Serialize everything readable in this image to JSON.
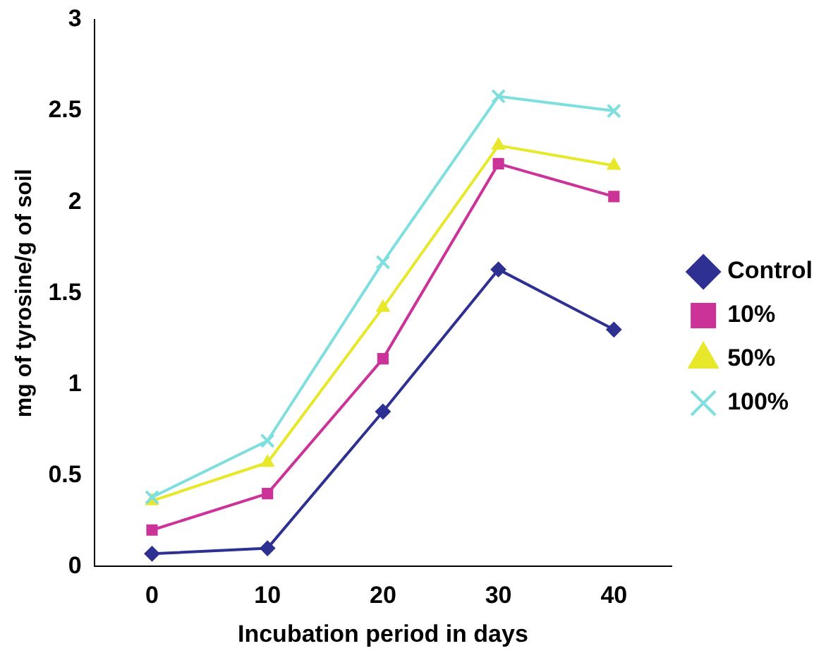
{
  "chart_data": {
    "type": "line",
    "xlabel": "Incubation period in days",
    "ylabel": "mg of tyrosine/g of soil",
    "categories": [
      "0",
      "10",
      "20",
      "30",
      "40"
    ],
    "ylim": [
      0,
      3
    ],
    "yticks": [
      0,
      0.5,
      1,
      1.5,
      2,
      2.5,
      3
    ],
    "grid": false,
    "legend": "right",
    "line_style": "solid",
    "series": [
      {
        "name": "Control",
        "color": "#2e3192",
        "marker": "diamond",
        "values": [
          0.07,
          0.1,
          0.85,
          1.63,
          1.3
        ]
      },
      {
        "name": "10%",
        "color": "#cc3399",
        "marker": "square",
        "values": [
          0.2,
          0.4,
          1.14,
          2.21,
          2.03
        ]
      },
      {
        "name": "50%",
        "color": "#e8e82a",
        "marker": "triangle",
        "values": [
          0.36,
          0.57,
          1.42,
          2.31,
          2.2
        ]
      },
      {
        "name": "100%",
        "color": "#7fdfdf",
        "marker": "cross",
        "values": [
          0.38,
          0.69,
          1.67,
          2.58,
          2.5
        ]
      }
    ]
  }
}
